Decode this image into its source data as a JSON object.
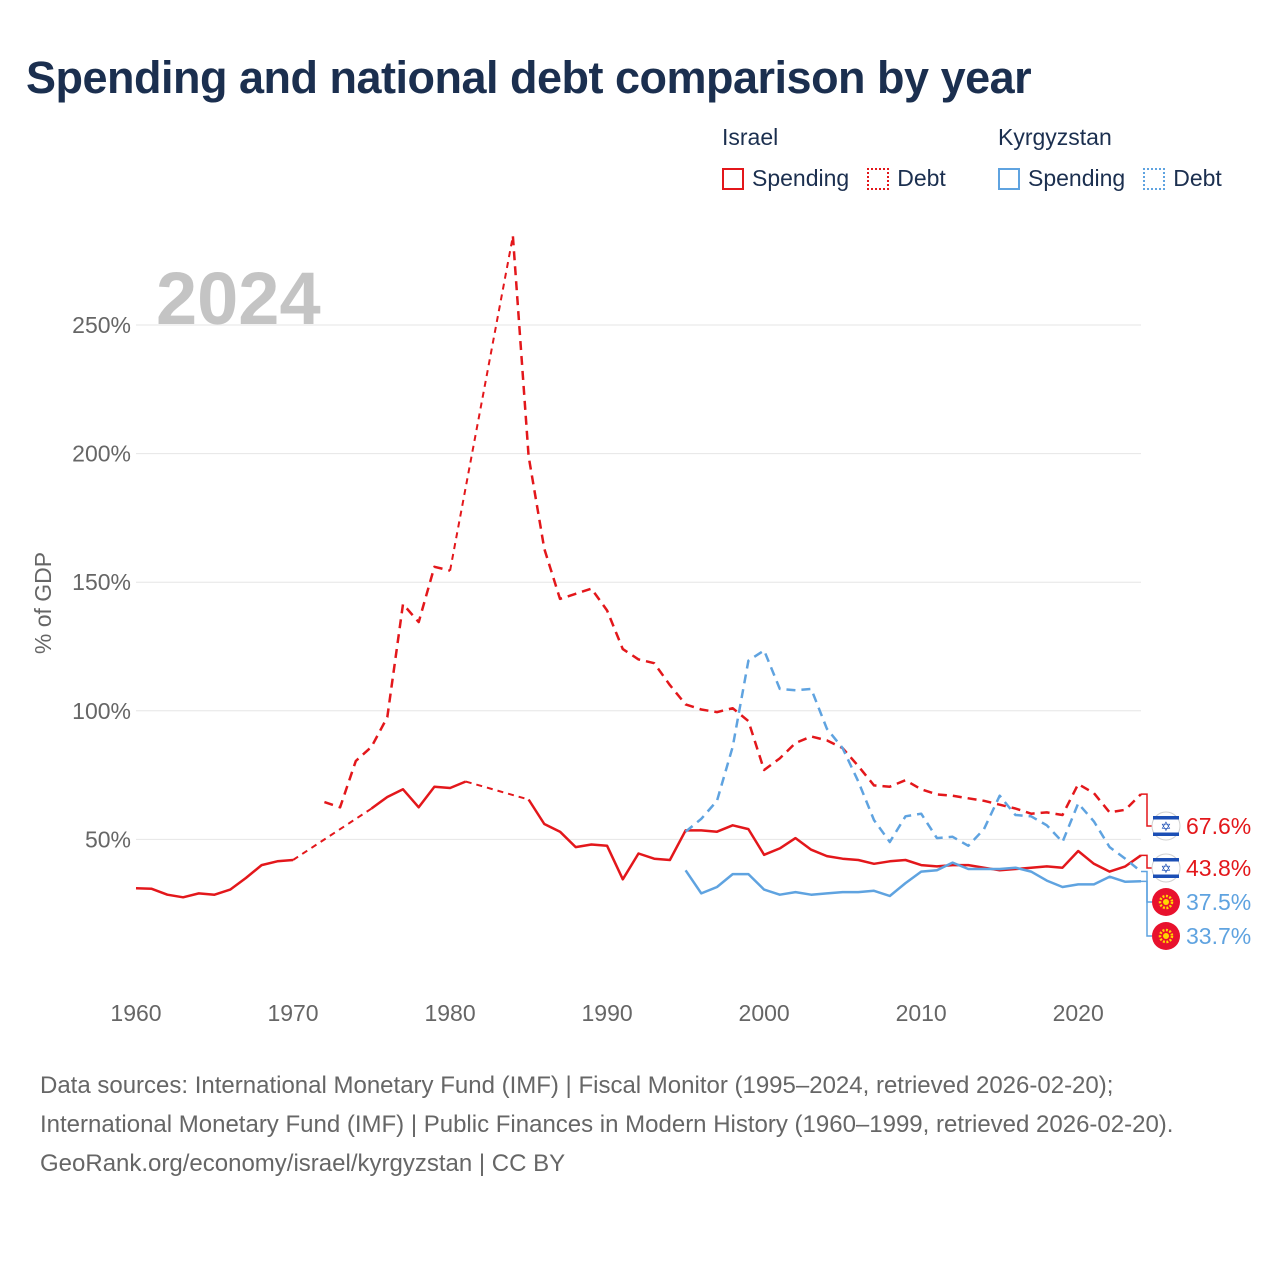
{
  "title": "Spending and national debt comparison by year",
  "legend": {
    "groups": [
      {
        "name": "Israel",
        "spending": "Spending",
        "debt": "Debt"
      },
      {
        "name": "Kyrgyzstan",
        "spending": "Spending",
        "debt": "Debt"
      }
    ]
  },
  "footer": {
    "sources": "Data sources: International Monetary Fund (IMF) | Fiscal Monitor (1995–2024, retrieved 2026-02-20); International Monetary Fund (IMF) | Public Finances in Modern History (1960–1999, retrieved 2026-02-20).",
    "credit": "GeoRank.org/economy/israel/kyrgyzstan | CC BY"
  },
  "chart_data": {
    "type": "line",
    "year_label": "2024",
    "ylabel": "% of GDP",
    "xlim": [
      1960,
      2024
    ],
    "ylim": [
      0,
      285
    ],
    "x_ticks": [
      1960,
      1970,
      1980,
      1990,
      2000,
      2010,
      2020
    ],
    "y_ticks": [
      50,
      100,
      150,
      200,
      250
    ],
    "y_tick_labels": [
      "50%",
      "100%",
      "150%",
      "200%",
      "250%"
    ],
    "colors": {
      "israel": "#e3171b",
      "kyrgyzstan": "#5fa3e0"
    },
    "series": [
      {
        "name": "Israel Spending",
        "country": "israel",
        "style": "solid",
        "end_label": "43.8%",
        "points": [
          [
            1960,
            31
          ],
          [
            1961,
            30.8
          ],
          [
            1962,
            28.5
          ],
          [
            1963,
            27.5
          ],
          [
            1964,
            29
          ],
          [
            1965,
            28.5
          ],
          [
            1966,
            30.5
          ],
          [
            1967,
            35
          ],
          [
            1968,
            40
          ],
          [
            1969,
            41.5
          ],
          [
            1970,
            42
          ],
          [
            1971,
            null
          ],
          [
            1972,
            null
          ],
          [
            1973,
            null
          ],
          [
            1974,
            null
          ],
          [
            1975,
            62
          ],
          [
            1976,
            66.5
          ],
          [
            1977,
            69.5
          ],
          [
            1978,
            62.5
          ],
          [
            1979,
            70.5
          ],
          [
            1980,
            70
          ],
          [
            1981,
            72.5
          ],
          [
            1982,
            null
          ],
          [
            1983,
            null
          ],
          [
            1984,
            null
          ],
          [
            1985,
            65.5
          ],
          [
            1986,
            56
          ],
          [
            1987,
            53
          ],
          [
            1988,
            47
          ],
          [
            1989,
            48
          ],
          [
            1990,
            47.5
          ],
          [
            1991,
            34.5
          ],
          [
            1992,
            44.5
          ],
          [
            1993,
            42.5
          ],
          [
            1994,
            42
          ],
          [
            1995,
            53.5
          ],
          [
            1996,
            53.5
          ],
          [
            1997,
            53
          ],
          [
            1998,
            55.5
          ],
          [
            1999,
            54
          ],
          [
            2000,
            44
          ],
          [
            2001,
            46.5
          ],
          [
            2002,
            50.5
          ],
          [
            2003,
            46
          ],
          [
            2004,
            43.5
          ],
          [
            2005,
            42.5
          ],
          [
            2006,
            42
          ],
          [
            2007,
            40.5
          ],
          [
            2008,
            41.5
          ],
          [
            2009,
            42
          ],
          [
            2010,
            40
          ],
          [
            2011,
            39.5
          ],
          [
            2012,
            40
          ],
          [
            2013,
            40
          ],
          [
            2014,
            39
          ],
          [
            2015,
            38
          ],
          [
            2016,
            38.5
          ],
          [
            2017,
            39
          ],
          [
            2018,
            39.5
          ],
          [
            2019,
            39
          ],
          [
            2020,
            45.5
          ],
          [
            2021,
            40.5
          ],
          [
            2022,
            37.5
          ],
          [
            2023,
            39.5
          ],
          [
            2024,
            43.8
          ]
        ]
      },
      {
        "name": "Israel Debt",
        "country": "israel",
        "style": "dashed",
        "end_label": "67.6%",
        "points": [
          [
            1972,
            64.5
          ],
          [
            1973,
            62.5
          ],
          [
            1974,
            80.5
          ],
          [
            1975,
            86
          ],
          [
            1976,
            97.5
          ],
          [
            1977,
            141.5
          ],
          [
            1978,
            134.5
          ],
          [
            1979,
            156
          ],
          [
            1980,
            154.5
          ],
          [
            1981,
            null
          ],
          [
            1982,
            null
          ],
          [
            1983,
            null
          ],
          [
            1984,
            284.5
          ],
          [
            1985,
            199
          ],
          [
            1986,
            163
          ],
          [
            1987,
            143.5
          ],
          [
            1988,
            145.5
          ],
          [
            1989,
            147.5
          ],
          [
            1990,
            139
          ],
          [
            1991,
            124
          ],
          [
            1992,
            120
          ],
          [
            1993,
            118.5
          ],
          [
            1994,
            110
          ],
          [
            1995,
            102.5
          ],
          [
            1996,
            100.5
          ],
          [
            1997,
            99.5
          ],
          [
            1998,
            101
          ],
          [
            1999,
            96
          ],
          [
            2000,
            77
          ],
          [
            2001,
            81.5
          ],
          [
            2002,
            87.5
          ],
          [
            2003,
            90
          ],
          [
            2004,
            88.5
          ],
          [
            2005,
            85.5
          ],
          [
            2006,
            78.5
          ],
          [
            2007,
            71
          ],
          [
            2008,
            70.5
          ],
          [
            2009,
            73
          ],
          [
            2010,
            69.5
          ],
          [
            2011,
            67.5
          ],
          [
            2012,
            67
          ],
          [
            2013,
            66
          ],
          [
            2014,
            65
          ],
          [
            2015,
            63.5
          ],
          [
            2016,
            62
          ],
          [
            2017,
            60
          ],
          [
            2018,
            60.5
          ],
          [
            2019,
            59.5
          ],
          [
            2020,
            71.5
          ],
          [
            2021,
            68
          ],
          [
            2022,
            60.5
          ],
          [
            2023,
            61.5
          ],
          [
            2024,
            67.6
          ]
        ]
      },
      {
        "name": "Kyrgyzstan Spending",
        "country": "kyrgyzstan",
        "style": "solid",
        "end_label": "33.7%",
        "points": [
          [
            1995,
            38
          ],
          [
            1996,
            29
          ],
          [
            1997,
            31.5
          ],
          [
            1998,
            36.5
          ],
          [
            1999,
            36.5
          ],
          [
            2000,
            30.5
          ],
          [
            2001,
            28.5
          ],
          [
            2002,
            29.5
          ],
          [
            2003,
            28.5
          ],
          [
            2004,
            29
          ],
          [
            2005,
            29.5
          ],
          [
            2006,
            29.5
          ],
          [
            2007,
            30
          ],
          [
            2008,
            28
          ],
          [
            2009,
            33
          ],
          [
            2010,
            37.5
          ],
          [
            2011,
            38
          ],
          [
            2012,
            41
          ],
          [
            2013,
            38.5
          ],
          [
            2014,
            38.5
          ],
          [
            2015,
            38.5
          ],
          [
            2016,
            39
          ],
          [
            2017,
            37.5
          ],
          [
            2018,
            34
          ],
          [
            2019,
            31.5
          ],
          [
            2020,
            32.5
          ],
          [
            2021,
            32.5
          ],
          [
            2022,
            35.5
          ],
          [
            2023,
            33.5
          ],
          [
            2024,
            33.7
          ]
        ]
      },
      {
        "name": "Kyrgyzstan Debt",
        "country": "kyrgyzstan",
        "style": "dashed",
        "end_label": "37.5%",
        "points": [
          [
            1995,
            53
          ],
          [
            1996,
            58
          ],
          [
            1997,
            65
          ],
          [
            1998,
            86
          ],
          [
            1999,
            119.5
          ],
          [
            2000,
            123.5
          ],
          [
            2001,
            108.5
          ],
          [
            2002,
            108
          ],
          [
            2003,
            108.5
          ],
          [
            2004,
            93
          ],
          [
            2005,
            85.5
          ],
          [
            2006,
            72.5
          ],
          [
            2007,
            57.5
          ],
          [
            2008,
            49
          ],
          [
            2009,
            59
          ],
          [
            2010,
            60
          ],
          [
            2011,
            50.5
          ],
          [
            2012,
            51
          ],
          [
            2013,
            47.5
          ],
          [
            2014,
            54
          ],
          [
            2015,
            67
          ],
          [
            2016,
            59.5
          ],
          [
            2017,
            59
          ],
          [
            2018,
            55.5
          ],
          [
            2019,
            49
          ],
          [
            2020,
            64
          ],
          [
            2021,
            57
          ],
          [
            2022,
            47
          ],
          [
            2023,
            42.5
          ],
          [
            2024,
            37.5
          ]
        ]
      }
    ]
  }
}
